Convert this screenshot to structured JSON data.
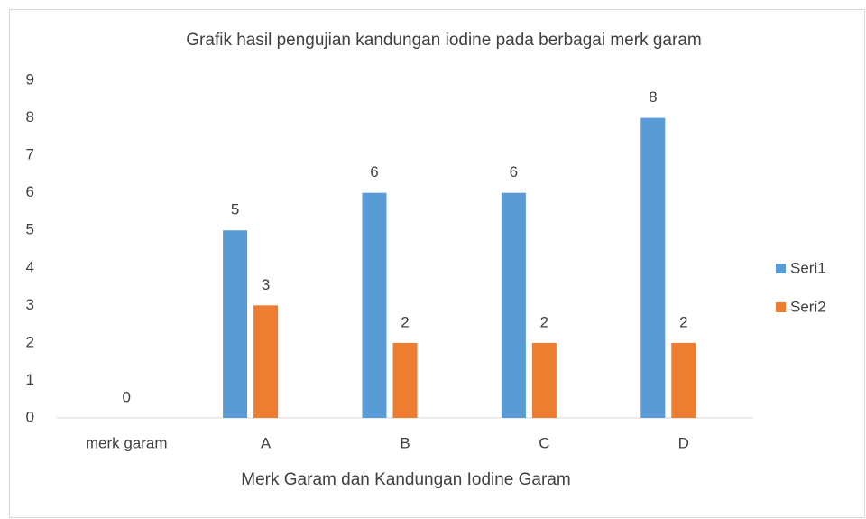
{
  "chart_data": {
    "type": "bar",
    "title": "Grafik hasil pengujian kandungan iodine pada berbagai merk garam",
    "x_label": "Merk Garam dan Kandungan Iodine Garam",
    "categories": [
      "merk garam",
      "A",
      "B",
      "C",
      "D"
    ],
    "series": [
      {
        "name": "Seri1",
        "color": "#5b9bd5",
        "values": [
          null,
          5,
          6,
          6,
          8
        ]
      },
      {
        "name": "Seri2",
        "color": "#ed7d31",
        "values": [
          0,
          3,
          2,
          2,
          2
        ]
      }
    ],
    "ylim": [
      0,
      9
    ],
    "yticks": [
      0,
      1,
      2,
      3,
      4,
      5,
      6,
      7,
      8,
      9
    ],
    "grid": false,
    "legend": "right",
    "data_labels": true
  }
}
